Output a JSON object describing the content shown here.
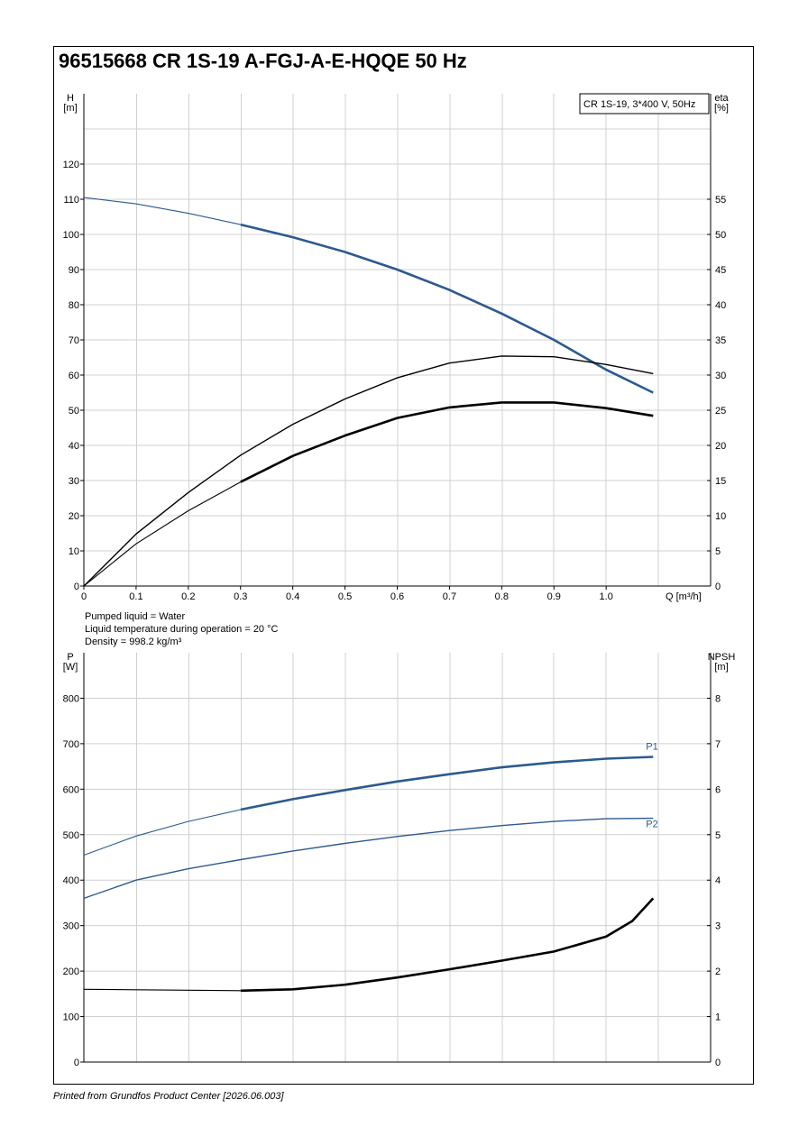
{
  "page": {
    "title": "96515668 CR 1S-19 A-FGJ-A-E-HQQE 50 Hz",
    "footer": "Printed from Grundfos Product Center [2026.06.003]",
    "liquid_info": [
      "Pumped liquid = Water",
      "Liquid temperature during operation = 20 °C",
      "Density = 998.2 kg/m³"
    ]
  },
  "colors": {
    "blue": "#2c5a8f",
    "black": "#000000",
    "grid": "#d0d0d0"
  },
  "chart_data": [
    {
      "type": "line",
      "legend_box": "CR 1S-19, 3*400 V, 50Hz",
      "xlabel": "Q [m³/h]",
      "ylabel_left": [
        "H",
        "[m]"
      ],
      "ylabel_right": [
        "eta",
        "[%]"
      ],
      "xlim": [
        0,
        1.2
      ],
      "ylim_left": [
        0,
        140
      ],
      "ylim_right": [
        0,
        70
      ],
      "x_ticks": [
        "0",
        "0.1",
        "0.2",
        "0.3",
        "0.4",
        "0.5",
        "0.6",
        "0.7",
        "0.8",
        "0.9",
        "1.0"
      ],
      "y_ticks_left": [
        "0",
        "10",
        "20",
        "30",
        "40",
        "50",
        "60",
        "70",
        "80",
        "90",
        "100",
        "110",
        "120"
      ],
      "y_ticks_right": [
        "0",
        "5",
        "10",
        "15",
        "20",
        "25",
        "30",
        "35",
        "40",
        "45",
        "50",
        "55"
      ],
      "grid": true,
      "series": [
        {
          "axis": "left",
          "color": "blue",
          "x": [
            0,
            0.1,
            0.2,
            0.3,
            0.4,
            0.5,
            0.6,
            0.7,
            0.8,
            0.9,
            1.0,
            1.09
          ],
          "y": [
            110.5,
            108.7,
            106,
            102.8,
            99.2,
            95,
            90,
            84.2,
            77.5,
            70,
            61.5,
            55
          ],
          "bold_from": 0.3
        },
        {
          "axis": "right",
          "color": "black",
          "x": [
            0,
            0.1,
            0.2,
            0.3,
            0.4,
            0.5,
            0.6,
            0.7,
            0.8,
            0.9,
            1.0,
            1.09
          ],
          "y": [
            0,
            7.4,
            13.3,
            18.6,
            23,
            26.6,
            29.6,
            31.7,
            32.7,
            32.6,
            31.5,
            30.2
          ],
          "bold_from": null
        },
        {
          "axis": "right",
          "color": "black",
          "x": [
            0,
            0.1,
            0.2,
            0.3,
            0.4,
            0.5,
            0.6,
            0.7,
            0.8,
            0.9,
            1.0,
            1.09
          ],
          "y": [
            0,
            6,
            10.7,
            14.8,
            18.5,
            21.4,
            23.9,
            25.4,
            26.1,
            26.1,
            25.3,
            24.2
          ],
          "bold_from": 0.3
        }
      ]
    },
    {
      "type": "line",
      "ylabel_left": [
        "P",
        "[W]"
      ],
      "ylabel_right": [
        "NPSH",
        "[m]"
      ],
      "xlim": [
        0,
        1.2
      ],
      "ylim_left": [
        0,
        900
      ],
      "ylim_right": [
        0,
        9
      ],
      "y_ticks_left": [
        "0",
        "100",
        "200",
        "300",
        "400",
        "500",
        "600",
        "700",
        "800"
      ],
      "y_ticks_right": [
        "0",
        "1",
        "2",
        "3",
        "4",
        "5",
        "6",
        "7",
        "8"
      ],
      "grid": true,
      "series": [
        {
          "name": "P1",
          "axis": "left",
          "color": "blue",
          "x": [
            0,
            0.1,
            0.2,
            0.3,
            0.4,
            0.5,
            0.6,
            0.7,
            0.8,
            0.9,
            1.0,
            1.09
          ],
          "y": [
            455,
            497,
            529,
            555,
            578,
            598,
            617,
            633,
            648,
            659,
            667,
            671
          ],
          "bold_from": 0.3
        },
        {
          "name": "P2",
          "axis": "left",
          "color": "blue",
          "x": [
            0,
            0.1,
            0.2,
            0.3,
            0.4,
            0.5,
            0.6,
            0.7,
            0.8,
            0.9,
            1.0,
            1.09
          ],
          "y": [
            360,
            400,
            425,
            445,
            464,
            481,
            496,
            509,
            520,
            529,
            535,
            536
          ],
          "bold_from": null
        },
        {
          "axis": "right",
          "color": "black",
          "x": [
            0,
            0.1,
            0.2,
            0.3,
            0.4,
            0.5,
            0.6,
            0.7,
            0.8,
            0.9,
            1.0,
            1.05,
            1.09
          ],
          "y": [
            1.6,
            1.59,
            1.58,
            1.57,
            1.6,
            1.7,
            1.86,
            2.04,
            2.23,
            2.43,
            2.76,
            3.1,
            3.6
          ],
          "bold_from": 0.3
        }
      ]
    }
  ]
}
